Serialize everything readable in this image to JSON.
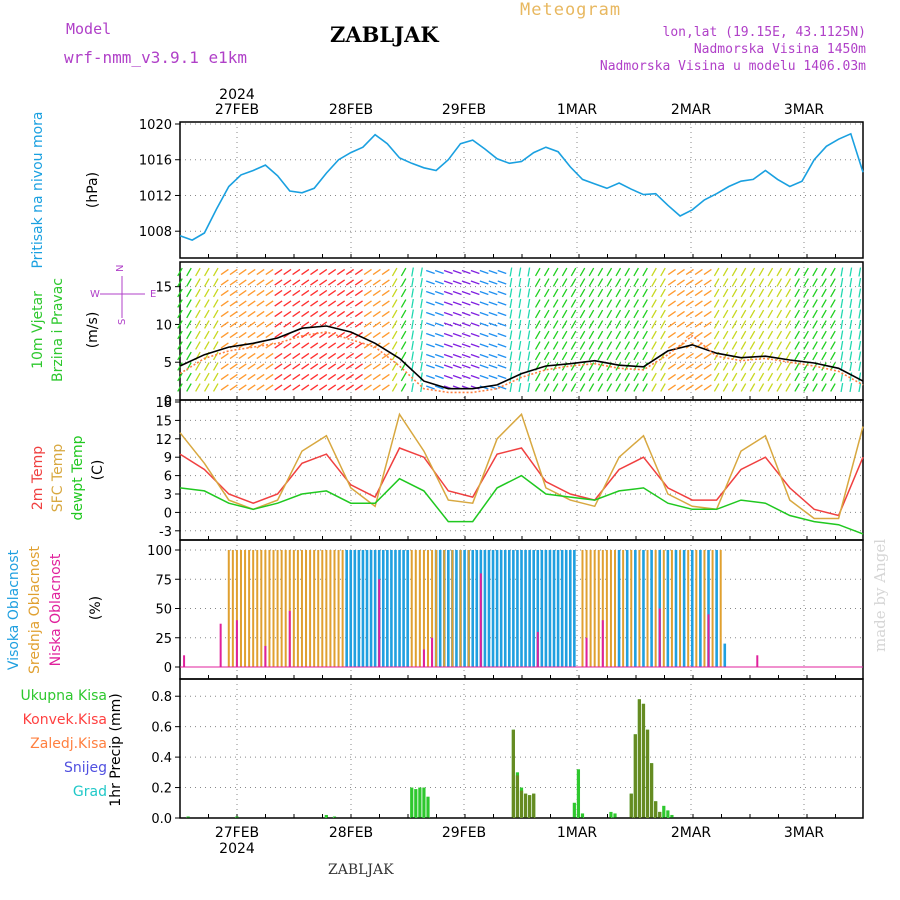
{
  "header": {
    "model_label": "Model",
    "model_name": "wrf-nmm_v3.9.1 e1km",
    "station": "ZABLJAK",
    "title": "Meteogram",
    "lonlat": "lon,lat (19.15E, 43.1125N)",
    "altitude": "Nadmorska Visina 1450m",
    "model_altitude": "Nadmorska Visina u modelu 1406.03m"
  },
  "footer": {
    "station": "ZABLJAK",
    "credit": "made by Angel"
  },
  "colors": {
    "pressure": "#1aa0e0",
    "gust": "#000000",
    "wind_mean": "#ff8040",
    "temp2m": "#f04040",
    "sfc_temp": "#d8a840",
    "dewpt": "#20c820",
    "high_cloud": "#20a0e0",
    "mid_cloud": "#e0a030",
    "low_cloud": "#e0209c",
    "precip_total": "#2ec82e",
    "precip_conv": "#ff4040",
    "precip_frz": "#ff8040",
    "snow": "#5050e0",
    "hail": "#20c8c8",
    "axes_purple": "#b040c8"
  },
  "time_axis": {
    "year": "2024",
    "days": [
      "27FEB",
      "28FEB",
      "29FEB",
      "1MAR",
      "2MAR",
      "3MAR"
    ],
    "hours_total": 168
  },
  "chart_data": [
    {
      "type": "line",
      "name": "pressure",
      "ylabel": "Pritisak na nivou mora",
      "unit": "(hPa)",
      "ylim": [
        1005,
        1020
      ],
      "yticks": [
        1008,
        1012,
        1016,
        1020
      ],
      "x": [
        0,
        3,
        6,
        9,
        12,
        15,
        18,
        21,
        24,
        27,
        30,
        33,
        36,
        39,
        42,
        45,
        48,
        51,
        54,
        57,
        60,
        63,
        66,
        69,
        72,
        75,
        78,
        81,
        84,
        87,
        90,
        93,
        96,
        99,
        102,
        105,
        108,
        111,
        114,
        117,
        120,
        123,
        126,
        129,
        132,
        135,
        138,
        141,
        144,
        147,
        150,
        153,
        156,
        159,
        162,
        165,
        168
      ],
      "values": [
        1007.5,
        1007.0,
        1007.8,
        1010.5,
        1013.0,
        1014.3,
        1014.8,
        1015.4,
        1014.2,
        1012.5,
        1012.3,
        1012.8,
        1014.5,
        1016.0,
        1016.8,
        1017.4,
        1018.8,
        1017.8,
        1016.2,
        1015.6,
        1015.1,
        1014.8,
        1016.0,
        1017.8,
        1018.2,
        1017.2,
        1016.1,
        1015.6,
        1015.8,
        1016.8,
        1017.4,
        1016.9,
        1015.2,
        1013.8,
        1013.3,
        1012.8,
        1013.4,
        1012.7,
        1012.1,
        1012.2,
        1010.9,
        1009.7,
        1010.4,
        1011.5,
        1012.2,
        1013.0,
        1013.6,
        1013.8,
        1014.8,
        1013.8,
        1013.0,
        1013.6,
        1016.0,
        1017.5,
        1018.3,
        1018.9,
        1014.6
      ]
    },
    {
      "type": "line",
      "name": "wind",
      "ylabel": "10m Vjetar Brzina i Pravac",
      "unit": "(m/s)",
      "ylim": [
        0,
        18
      ],
      "yticks": [
        0,
        5,
        10,
        15
      ],
      "compass": {
        "n": "N",
        "s": "S",
        "e": "E",
        "w": "W"
      },
      "x": [
        0,
        6,
        12,
        18,
        24,
        30,
        36,
        42,
        48,
        54,
        60,
        66,
        72,
        78,
        84,
        90,
        96,
        102,
        108,
        114,
        120,
        126,
        132,
        138,
        144,
        150,
        156,
        162,
        168
      ],
      "series": [
        {
          "role": "gust",
          "values": [
            4.5,
            6.0,
            7.0,
            7.5,
            8.2,
            9.5,
            9.8,
            9.0,
            7.5,
            5.5,
            2.5,
            1.5,
            1.5,
            2.0,
            3.5,
            4.5,
            4.8,
            5.2,
            4.6,
            4.4,
            6.5,
            7.3,
            6.2,
            5.6,
            5.8,
            5.3,
            4.9,
            4.2,
            2.5
          ]
        },
        {
          "role": "mean",
          "values": [
            3.5,
            5.5,
            6.5,
            7.0,
            7.5,
            8.5,
            9.0,
            8.0,
            7.0,
            4.5,
            1.5,
            1.0,
            1.0,
            1.5,
            3.0,
            4.0,
            4.5,
            4.8,
            4.2,
            4.0,
            6.0,
            8.5,
            5.8,
            5.2,
            5.5,
            5.0,
            4.5,
            3.8,
            2.0
          ]
        }
      ]
    },
    {
      "type": "line",
      "name": "temperature",
      "ylabel": "2m Temp / SFC Temp / dewpt Temp",
      "unit": "(C)",
      "ylim": [
        -4.5,
        18
      ],
      "yticks": [
        -3,
        0,
        3,
        6,
        9,
        12,
        15,
        18
      ],
      "x": [
        0,
        6,
        12,
        18,
        24,
        30,
        36,
        42,
        48,
        54,
        60,
        66,
        72,
        78,
        84,
        90,
        96,
        102,
        108,
        114,
        120,
        126,
        132,
        138,
        144,
        150,
        156,
        162,
        168
      ],
      "series": [
        {
          "name": "2m Temp",
          "values": [
            9.5,
            7.0,
            3.0,
            1.5,
            3.0,
            8.0,
            9.5,
            4.5,
            2.5,
            10.5,
            9.0,
            3.5,
            2.5,
            9.5,
            10.5,
            5.0,
            3.0,
            2.0,
            7.0,
            9.0,
            4.0,
            2.0,
            2.0,
            7.0,
            9.0,
            4.0,
            0.5,
            -0.5,
            9.0
          ]
        },
        {
          "name": "SFC Temp",
          "values": [
            13.0,
            8.0,
            2.0,
            0.5,
            2.0,
            10.0,
            12.5,
            4.0,
            1.0,
            16.0,
            10.0,
            2.0,
            1.5,
            12.0,
            16.0,
            4.0,
            2.0,
            1.0,
            9.0,
            12.5,
            3.0,
            1.0,
            0.5,
            10.0,
            12.5,
            2.0,
            -1.0,
            -1.0,
            14.0
          ]
        },
        {
          "name": "dewpt Temp",
          "values": [
            4.0,
            3.5,
            1.5,
            0.5,
            1.5,
            3.0,
            3.5,
            1.5,
            1.5,
            5.5,
            3.5,
            -1.5,
            -1.5,
            4.0,
            6.0,
            3.0,
            2.5,
            2.0,
            3.5,
            4.0,
            1.5,
            0.5,
            0.5,
            2.0,
            1.5,
            -0.5,
            -1.5,
            -2.0,
            -3.5
          ]
        }
      ]
    },
    {
      "type": "bar",
      "name": "clouds",
      "ylabel": "Visoka Oblacnost / Srednja Oblacnost / Niska Oblacnost",
      "unit": "(%)",
      "ylim": [
        0,
        100
      ],
      "yticks": [
        0,
        25,
        50,
        75,
        100
      ],
      "series": [
        {
          "name": "Visoka Oblacnost",
          "x": [
            41,
            42,
            43,
            44,
            45,
            46,
            47,
            48,
            49,
            50,
            51,
            52,
            53,
            54,
            55,
            56,
            63,
            64,
            65,
            66,
            67,
            68,
            69,
            70,
            71,
            72,
            73,
            74,
            75,
            76,
            77,
            78,
            79,
            80,
            81,
            82,
            83,
            84,
            85,
            86,
            87,
            88,
            89,
            90,
            91,
            92,
            93,
            94,
            95,
            96,
            97,
            108,
            110,
            112,
            114,
            116,
            118,
            120,
            122,
            124,
            126,
            128,
            130,
            132,
            134
          ],
          "values": [
            100,
            100,
            100,
            100,
            100,
            100,
            100,
            100,
            100,
            100,
            100,
            100,
            100,
            100,
            100,
            100,
            100,
            100,
            100,
            100,
            100,
            100,
            100,
            100,
            100,
            100,
            100,
            100,
            100,
            100,
            100,
            100,
            100,
            100,
            100,
            100,
            100,
            100,
            100,
            100,
            100,
            100,
            100,
            100,
            100,
            100,
            100,
            100,
            100,
            100,
            100,
            100,
            100,
            100,
            100,
            100,
            100,
            100,
            100,
            100,
            100,
            100,
            100,
            100,
            20
          ]
        },
        {
          "name": "Srednja Oblacnost",
          "x": [
            12,
            13,
            14,
            15,
            16,
            17,
            18,
            19,
            20,
            21,
            22,
            23,
            24,
            25,
            26,
            27,
            28,
            29,
            30,
            31,
            32,
            33,
            34,
            35,
            36,
            37,
            38,
            39,
            40,
            57,
            58,
            59,
            60,
            61,
            62,
            63,
            65,
            67,
            69,
            71,
            99,
            100,
            101,
            102,
            103,
            104,
            105,
            106,
            107,
            109,
            111,
            113,
            115,
            117,
            119,
            121,
            123,
            125,
            127,
            129,
            131,
            133
          ],
          "values": [
            100,
            100,
            100,
            100,
            100,
            100,
            100,
            100,
            100,
            100,
            100,
            100,
            100,
            100,
            100,
            100,
            100,
            100,
            100,
            100,
            100,
            100,
            100,
            100,
            100,
            100,
            100,
            100,
            100,
            100,
            100,
            100,
            100,
            100,
            100,
            100,
            100,
            100,
            100,
            100,
            100,
            100,
            100,
            100,
            100,
            100,
            100,
            100,
            100,
            100,
            100,
            100,
            100,
            100,
            100,
            100,
            100,
            100,
            100,
            100,
            100,
            100
          ]
        },
        {
          "name": "Niska Oblacnost",
          "x": [
            1,
            10,
            14,
            21,
            27,
            49,
            60,
            62,
            74,
            88,
            100,
            104,
            118,
            130,
            142
          ],
          "values": [
            10,
            37,
            40,
            18,
            48,
            75,
            15,
            25,
            80,
            30,
            25,
            40,
            50,
            45,
            10
          ]
        }
      ]
    },
    {
      "type": "bar",
      "name": "precipitation",
      "ylabel": "1hr Precip",
      "unit": "(mm)",
      "ylim": [
        0,
        0.9
      ],
      "yticks": [
        0.0,
        0.2,
        0.4,
        0.6,
        0.8
      ],
      "legend": [
        "Ukupna Kisa",
        "Konvek.Kisa",
        "Zaledj.Kisa",
        "Snijeg",
        "Grad"
      ],
      "x": [
        2,
        14,
        36,
        38,
        57,
        58,
        59,
        60,
        61,
        82,
        83,
        84,
        85,
        86,
        87,
        97,
        98,
        99,
        106,
        107,
        111,
        112,
        113,
        114,
        115,
        116,
        117,
        118,
        119,
        120,
        121
      ],
      "total": [
        0.01,
        0.01,
        0.02,
        0.01,
        0.2,
        0.19,
        0.2,
        0.2,
        0.14,
        0.58,
        0.3,
        0.2,
        0.16,
        0.15,
        0.16,
        0.1,
        0.32,
        0.03,
        0.04,
        0.03,
        0.16,
        0.55,
        0.78,
        0.75,
        0.58,
        0.36,
        0.11,
        0.04,
        0.08,
        0.05,
        0.02
      ],
      "convective": [
        0.0,
        0.0,
        0.0,
        0.0,
        0.0,
        0.0,
        0.0,
        0.0,
        0.0,
        0.58,
        0.28,
        0.18,
        0.16,
        0.15,
        0.16,
        0.0,
        0.0,
        0.0,
        0.0,
        0.0,
        0.16,
        0.55,
        0.78,
        0.75,
        0.58,
        0.36,
        0.11,
        0.04,
        0.0,
        0.0,
        0.0
      ]
    }
  ],
  "side_labels": {
    "pressure": [
      "Pritisak na nivou mora",
      "(hPa)"
    ],
    "wind": [
      "10m Vjetar",
      "Brzina i Pravac",
      "(m/s)"
    ],
    "temp": [
      "2m Temp",
      "SFC Temp",
      "dewpt Temp",
      "(C)"
    ],
    "cloud": [
      "Visoka Oblacnost",
      "Srednja Oblacnost",
      "Niska Oblacnost",
      "(%)"
    ],
    "precip": [
      "Ukupna Kisa",
      "Konvek.Kisa",
      "Zaledj.Kisa",
      "Snijeg",
      "Grad",
      "1hr Precip (mm)"
    ]
  }
}
